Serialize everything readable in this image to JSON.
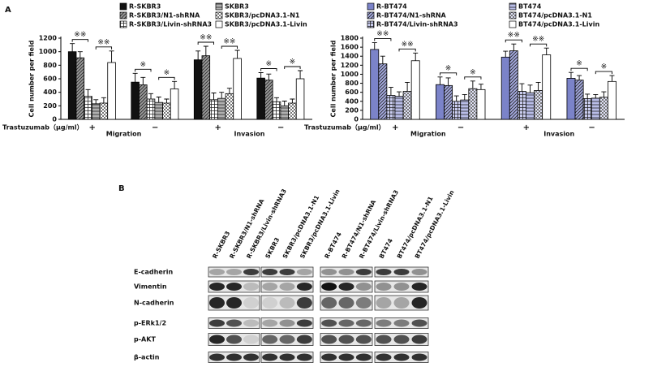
{
  "panel_labels": [
    "A",
    "B"
  ],
  "chart_data": [
    {
      "type": "bar",
      "y_label": "Cell number per field",
      "x_label": "Trastuzumab（μg/ml）",
      "categories": [
        "+",
        "−",
        "+",
        "−"
      ],
      "group_labels": [
        "Migration",
        "Invasion"
      ],
      "ylim": [
        0,
        1200
      ],
      "yticks": [
        0,
        200,
        400,
        600,
        800,
        1000,
        1200
      ],
      "annotations": [
        "※※",
        "※※",
        "※",
        "※",
        "※※",
        "※※",
        "※",
        "※"
      ],
      "series": [
        {
          "name": "R-SKBR3",
          "color": "#111111",
          "pattern": "none",
          "values": [
            1000,
            550,
            880,
            610
          ],
          "errors": [
            120,
            130,
            130,
            80
          ]
        },
        {
          "name": "R-SKBR3/N1-shRNA",
          "color": "#9a9a9a",
          "pattern": "diagonal",
          "values": [
            910,
            510,
            940,
            580
          ],
          "errors": [
            90,
            110,
            140,
            90
          ]
        },
        {
          "name": "R-SKBR3/Livin-shRNA3",
          "color": "#ffffff",
          "pattern": "grid",
          "values": [
            340,
            300,
            290,
            260
          ],
          "errors": [
            100,
            80,
            100,
            60
          ]
        },
        {
          "name": "SKBR3",
          "color": "#b0b0b0",
          "pattern": "horizontal",
          "values": [
            230,
            250,
            310,
            200
          ],
          "errors": [
            60,
            80,
            90,
            70
          ]
        },
        {
          "name": "SKBR3/pcDNA3.1-N1",
          "color": "#ffffff",
          "pattern": "check",
          "values": [
            240,
            240,
            380,
            240
          ],
          "errors": [
            80,
            60,
            80,
            60
          ]
        },
        {
          "name": "SKBR3/pcDNA3.1-Livin",
          "color": "#ffffff",
          "pattern": "none",
          "values": [
            840,
            450,
            900,
            600
          ],
          "errors": [
            170,
            110,
            120,
            120
          ]
        }
      ]
    },
    {
      "type": "bar",
      "y_label": "Cell number per field",
      "x_label": "Trastuzumab（μg/ml）",
      "categories": [
        "+",
        "−",
        "+",
        "−"
      ],
      "group_labels": [
        "Migration",
        "Invasion"
      ],
      "ylim": [
        0,
        1800
      ],
      "yticks": [
        0,
        200,
        400,
        600,
        800,
        1000,
        1200,
        1400,
        1600,
        1800
      ],
      "annotations": [
        "※※",
        "※※",
        "※",
        "※",
        "※※",
        "※※",
        "※",
        "※"
      ],
      "series": [
        {
          "name": "R-BT474",
          "color": "#7b83c9",
          "pattern": "none",
          "values": [
            1550,
            770,
            1380,
            910
          ],
          "errors": [
            150,
            170,
            130,
            130
          ]
        },
        {
          "name": "R-BT474/N1-shRNA",
          "color": "#a4a9de",
          "pattern": "diagonal",
          "values": [
            1230,
            750,
            1520,
            870
          ],
          "errors": [
            170,
            170,
            150,
            100
          ]
        },
        {
          "name": "R-BT474/Livin-shRNA3",
          "color": "#c9ccef",
          "pattern": "grid",
          "values": [
            530,
            400,
            620,
            460
          ],
          "errors": [
            180,
            120,
            170,
            100
          ]
        },
        {
          "name": "BT474",
          "color": "#b9bde8",
          "pattern": "horizontal",
          "values": [
            510,
            430,
            590,
            470
          ],
          "errors": [
            100,
            120,
            170,
            80
          ]
        },
        {
          "name": "BT474/pcDNA3.1-N1",
          "color": "#dfe1f6",
          "pattern": "check",
          "values": [
            620,
            680,
            640,
            490
          ],
          "errors": [
            200,
            170,
            180,
            120
          ]
        },
        {
          "name": "BT474/pcDNA3.1-Livin",
          "color": "#ffffff",
          "pattern": "none",
          "values": [
            1300,
            660,
            1430,
            840
          ],
          "errors": [
            170,
            120,
            150,
            130
          ]
        }
      ]
    }
  ],
  "western_blot": {
    "lanes": [
      "R-SKBR3",
      "R-SKBR3/N1-shRNA",
      "R-SKBR3/Livin-shRNA3",
      "SKBR3",
      "SKBR3/pcDNA3.1-N1",
      "SKBR3/pcDNA3.1-Livin",
      "R-BT474",
      "R-BT474/N1-shRNA",
      "R-BT474/Livin-shRNA3",
      "BT474",
      "BT474/pcDNA3.1-N1",
      "BT474/pcDNA3.1-Livin"
    ],
    "proteins": [
      "E-cadherin",
      "Vimentin",
      "N-cadherin",
      "p-ERk1/2",
      "p-AKT",
      "β-actin"
    ]
  }
}
